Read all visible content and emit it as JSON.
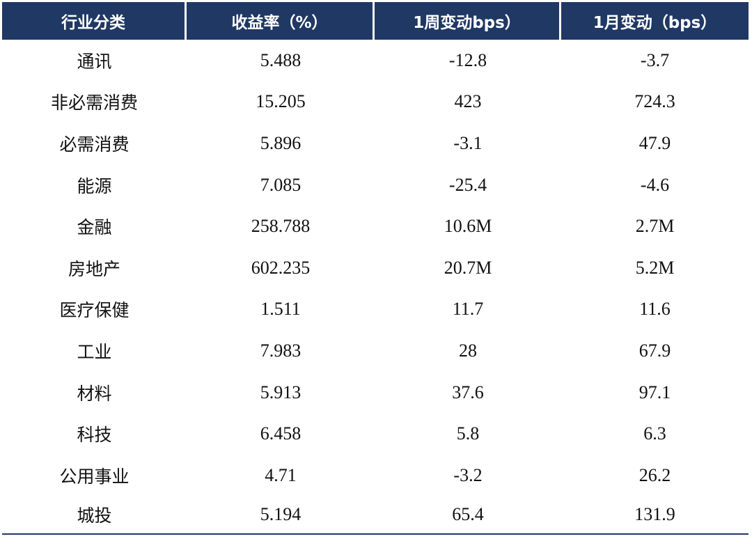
{
  "header": {
    "col1": "行业分类",
    "col2": "收益率（%）",
    "col3": "1周变动bps）",
    "col4": "1月变动（bps）"
  },
  "rows": [
    {
      "sector": "通讯",
      "yield": "5.488",
      "week": "-12.8",
      "month": "-3.7"
    },
    {
      "sector": "非必需消费",
      "yield": "15.205",
      "week": "423",
      "month": "724.3"
    },
    {
      "sector": "必需消费",
      "yield": "5.896",
      "week": "-3.1",
      "month": "47.9"
    },
    {
      "sector": "能源",
      "yield": "7.085",
      "week": "-25.4",
      "month": "-4.6"
    },
    {
      "sector": "金融",
      "yield": "258.788",
      "week": "10.6M",
      "month": "2.7M"
    },
    {
      "sector": "房地产",
      "yield": "602.235",
      "week": "20.7M",
      "month": "5.2M"
    },
    {
      "sector": "医疗保健",
      "yield": "1.511",
      "week": "11.7",
      "month": "11.6"
    },
    {
      "sector": "工业",
      "yield": "7.983",
      "week": "28",
      "month": "67.9"
    },
    {
      "sector": "材料",
      "yield": "5.913",
      "week": "37.6",
      "month": "97.1"
    },
    {
      "sector": "科技",
      "yield": "6.458",
      "week": "5.8",
      "month": "6.3"
    },
    {
      "sector": "公用事业",
      "yield": "4.71",
      "week": "-3.2",
      "month": "26.2"
    },
    {
      "sector": "城投",
      "yield": "5.194",
      "week": "65.4",
      "month": "131.9"
    }
  ],
  "colors": {
    "header_bg": "#203864",
    "header_text": "#ffffff",
    "body_text": "#111111"
  }
}
